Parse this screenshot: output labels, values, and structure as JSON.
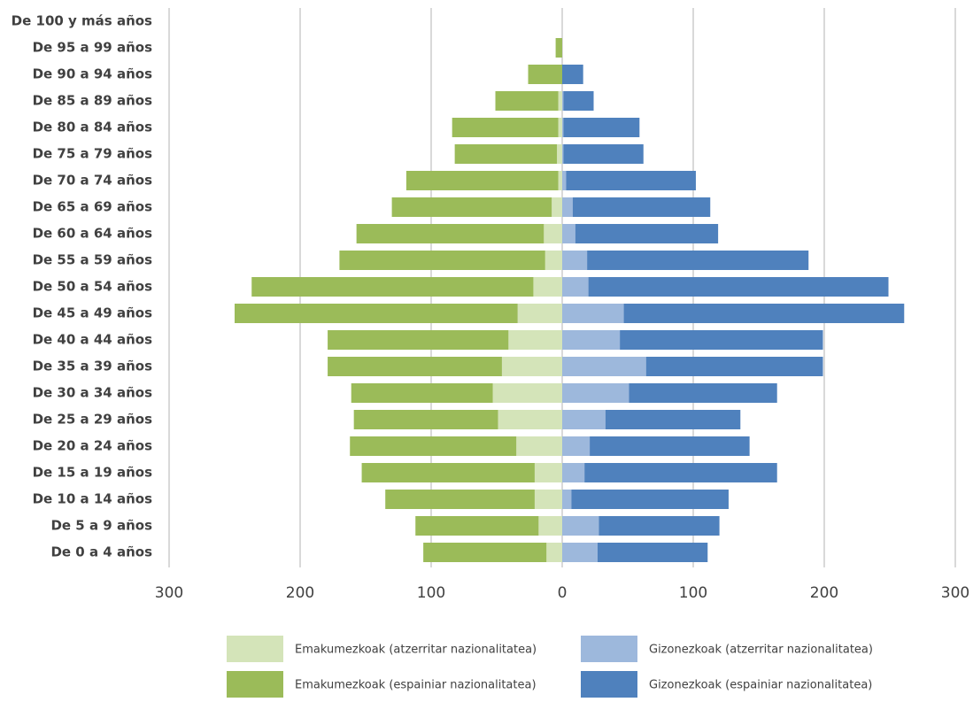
{
  "chart_data": {
    "type": "pyramid",
    "categories": [
      "De 100 y más años",
      "De 95 a 99 años",
      "De 90 a 94 años",
      "De 85 a 89 años",
      "De 80 a 84 años",
      "De 75 a 79 años",
      "De 70 a 74 años",
      "De 65 a 69 años",
      "De 60 a 64 años",
      "De 55 a 59 años",
      "De 50 a 54 años",
      "De 45 a 49 años",
      "De 40 a 44 años",
      "De 35 a 39 años",
      "De 30 a 34 años",
      "De 25 a 29 años",
      "De 20 a 24 años",
      "De 15 a 19 años",
      "De 10 a 14 años",
      "De 5 a 9 años",
      "De 0 a 4 años"
    ],
    "series": [
      {
        "name": "Emakumezkoak (atzerritar nazionalitatea)",
        "color": "#d4e4b9",
        "values": [
          0,
          0,
          0,
          -3,
          -3,
          -4,
          -3,
          -8,
          -14,
          -13,
          -22,
          -34,
          -41,
          -46,
          -53,
          -49,
          -35,
          -21,
          -21,
          -18,
          -12
        ]
      },
      {
        "name": "Emakumezkoak (espainiar nazionalitatea)",
        "color": "#9bbb59",
        "values": [
          0,
          -5,
          -26,
          -48,
          -81,
          -78,
          -116,
          -122,
          -143,
          -157,
          -215,
          -216,
          -138,
          -133,
          -108,
          -110,
          -127,
          -132,
          -114,
          -94,
          -94
        ]
      },
      {
        "name": "Gizonezkoak (atzerritar nazionalitatea)",
        "color": "#9db8dc",
        "values": [
          0,
          0,
          0,
          1,
          1,
          1,
          3,
          8,
          10,
          19,
          20,
          47,
          44,
          64,
          51,
          33,
          21,
          17,
          7,
          28,
          27
        ]
      },
      {
        "name": "Gizonezkoak (espainiar nazionalitatea)",
        "color": "#4f81bd",
        "values": [
          0,
          0,
          16,
          23,
          58,
          61,
          99,
          105,
          109,
          169,
          229,
          214,
          155,
          135,
          113,
          103,
          122,
          147,
          120,
          92,
          84
        ]
      }
    ],
    "xlim": [
      -300,
      300
    ],
    "xticks": [
      {
        "value": -300,
        "label": "300"
      },
      {
        "value": -200,
        "label": "200"
      },
      {
        "value": -100,
        "label": "100"
      },
      0,
      100,
      200,
      300
    ],
    "grid": true
  }
}
